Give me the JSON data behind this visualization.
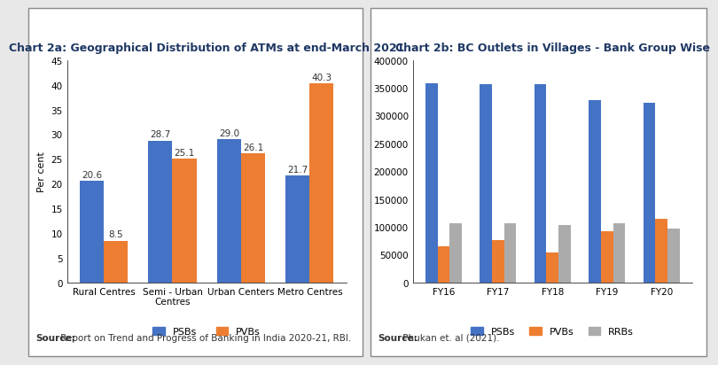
{
  "chart2a": {
    "title": "Chart 2a: Geographical Distribution of ATMs at end-March 2021",
    "categories": [
      "Rural Centres",
      "Semi - Urban\nCentres",
      "Urban Centers",
      "Metro Centres"
    ],
    "psbs": [
      20.6,
      28.7,
      29.0,
      21.7
    ],
    "pvbs": [
      8.5,
      25.1,
      26.1,
      40.3
    ],
    "ylabel": "Per cent",
    "ylim": [
      0,
      45
    ],
    "yticks": [
      0,
      5,
      10,
      15,
      20,
      25,
      30,
      35,
      40,
      45
    ],
    "bar_color_psbs": "#4472C4",
    "bar_color_pvbs": "#ED7D31",
    "source_bold": "Source:",
    "source_rest": " Report on Trend and Progress of Banking in India 2020-21, RBI.",
    "bar_width": 0.35
  },
  "chart2b": {
    "title": "Chart 2b: BC Outlets in Villages - Bank Group Wise",
    "categories": [
      "FY16",
      "FY17",
      "FY18",
      "FY19",
      "FY20"
    ],
    "psbs": [
      358000,
      356000,
      357000,
      328000,
      324000
    ],
    "pvbs": [
      65000,
      77000,
      54000,
      93000,
      115000
    ],
    "rrbs": [
      106000,
      107000,
      103000,
      107000,
      97000
    ],
    "ylim": [
      0,
      400000
    ],
    "yticks": [
      0,
      50000,
      100000,
      150000,
      200000,
      250000,
      300000,
      350000,
      400000
    ],
    "bar_color_psbs": "#4472C4",
    "bar_color_pvbs": "#ED7D31",
    "bar_color_rrbs": "#ABABAB",
    "source_bold": "Source:",
    "source_rest": " Phukan et. al (2021).",
    "bar_width": 0.22
  },
  "fig_bg": "#E8E8E8",
  "panel_bg": "#FFFFFF",
  "title_fontsize": 9.0,
  "label_fontsize": 8.0,
  "tick_fontsize": 7.5,
  "source_fontsize": 7.5,
  "annotation_fontsize": 7.5,
  "title_color": "#1F3864"
}
